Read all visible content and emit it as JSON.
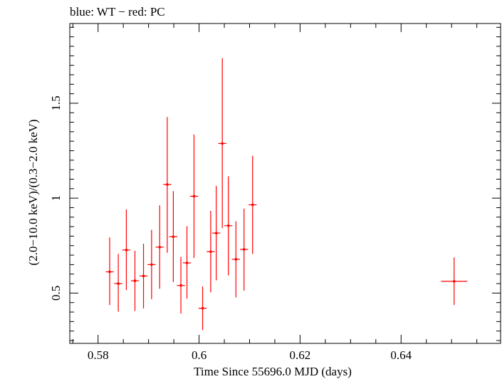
{
  "chart_data": {
    "type": "scatter",
    "title": "blue: WT − red: PC",
    "xlabel": "Time Since 55696.0 MJD (days)",
    "ylabel": "(2.0−10.0 keV)/(0.3−2.0 keV)",
    "xlim": [
      0.5744,
      0.6597
    ],
    "ylim": [
      0.235,
      1.92
    ],
    "x_ticks": [
      {
        "value": 0.58,
        "label": "0.58"
      },
      {
        "value": 0.6,
        "label": "0.6"
      },
      {
        "value": 0.62,
        "label": "0.62"
      },
      {
        "value": 0.64,
        "label": "0.64"
      }
    ],
    "y_ticks": [
      {
        "value": 0.5,
        "label": "0.5"
      },
      {
        "value": 1.0,
        "label": "1"
      },
      {
        "value": 1.5,
        "label": "1.5"
      }
    ],
    "grid": false,
    "series": [
      {
        "name": "PC",
        "color": "#ff0000",
        "points": [
          {
            "x": 0.5823,
            "xerr": 0.0008,
            "y": 0.612,
            "ylo": 0.437,
            "yhi": 0.793
          },
          {
            "x": 0.584,
            "xerr": 0.0008,
            "y": 0.55,
            "ylo": 0.402,
            "yhi": 0.706
          },
          {
            "x": 0.5856,
            "xerr": 0.0008,
            "y": 0.727,
            "ylo": 0.516,
            "yhi": 0.941
          },
          {
            "x": 0.5873,
            "xerr": 0.0008,
            "y": 0.565,
            "ylo": 0.406,
            "yhi": 0.723
          },
          {
            "x": 0.589,
            "xerr": 0.0008,
            "y": 0.59,
            "ylo": 0.419,
            "yhi": 0.76
          },
          {
            "x": 0.5906,
            "xerr": 0.0008,
            "y": 0.65,
            "ylo": 0.468,
            "yhi": 0.833
          },
          {
            "x": 0.5922,
            "xerr": 0.0008,
            "y": 0.742,
            "ylo": 0.523,
            "yhi": 0.962
          },
          {
            "x": 0.5937,
            "xerr": 0.0008,
            "y": 1.072,
            "ylo": 0.712,
            "yhi": 1.427
          },
          {
            "x": 0.5949,
            "xerr": 0.0008,
            "y": 0.797,
            "ylo": 0.558,
            "yhi": 1.037
          },
          {
            "x": 0.5964,
            "xerr": 0.0008,
            "y": 0.54,
            "ylo": 0.392,
            "yhi": 0.691
          },
          {
            "x": 0.5976,
            "xerr": 0.0008,
            "y": 0.659,
            "ylo": 0.471,
            "yhi": 0.852
          },
          {
            "x": 0.599,
            "xerr": 0.0008,
            "y": 1.01,
            "ylo": 0.685,
            "yhi": 1.335
          },
          {
            "x": 0.6007,
            "xerr": 0.0008,
            "y": 0.42,
            "ylo": 0.305,
            "yhi": 0.535
          },
          {
            "x": 0.6023,
            "xerr": 0.0008,
            "y": 0.718,
            "ylo": 0.504,
            "yhi": 0.933
          },
          {
            "x": 0.6034,
            "xerr": 0.0008,
            "y": 0.816,
            "ylo": 0.567,
            "yhi": 1.065
          },
          {
            "x": 0.6046,
            "xerr": 0.0008,
            "y": 1.288,
            "ylo": 0.842,
            "yhi": 1.738
          },
          {
            "x": 0.6058,
            "xerr": 0.0008,
            "y": 0.855,
            "ylo": 0.593,
            "yhi": 1.115
          },
          {
            "x": 0.6073,
            "xerr": 0.0008,
            "y": 0.678,
            "ylo": 0.477,
            "yhi": 0.878
          },
          {
            "x": 0.6089,
            "xerr": 0.0008,
            "y": 0.73,
            "ylo": 0.513,
            "yhi": 0.945
          },
          {
            "x": 0.6106,
            "xerr": 0.0008,
            "y": 0.965,
            "ylo": 0.706,
            "yhi": 1.223
          },
          {
            "x": 0.6505,
            "xerr": 0.0026,
            "y": 0.562,
            "ylo": 0.437,
            "yhi": 0.688
          }
        ]
      }
    ]
  }
}
